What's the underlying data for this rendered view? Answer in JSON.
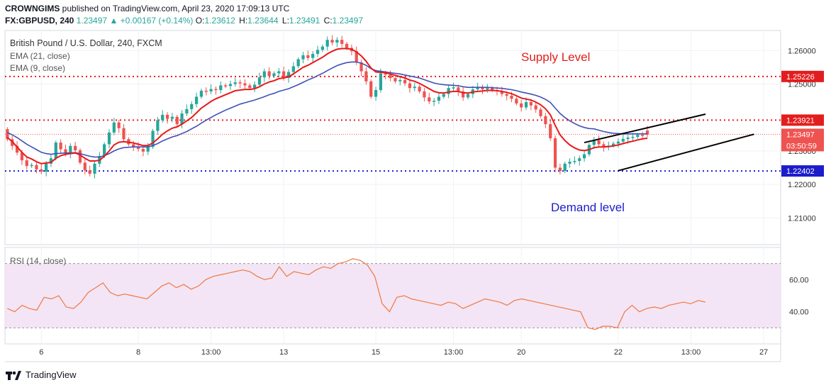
{
  "header": {
    "publisher": "CROWNGIMS",
    "published_text": "published on TradingView.com, April 23, 2020 17:09:13 UTC",
    "symbol": "FX:GBPUSD, 240",
    "last": "1.23497",
    "change": "+0.00167 (+0.14%)",
    "ohlc": [
      {
        "k": "O:",
        "v": "1.23612"
      },
      {
        "k": "H:",
        "v": "1.23644"
      },
      {
        "k": "L:",
        "v": "1.23491"
      },
      {
        "k": "C:",
        "v": "1.23497"
      }
    ]
  },
  "legend": {
    "title": "British Pound / U.S. Dollar, 240, FXCM",
    "ema21": "EMA (21, close)",
    "ema9": "EMA (9, close)",
    "rsi": "RSI (14, close)"
  },
  "annotations": {
    "supply": "Supply Level",
    "demand": "Demand level"
  },
  "footer": {
    "brand": "TradingView"
  },
  "colors": {
    "up": "#26a69a",
    "down": "#ef5350",
    "ema9": "#e81919",
    "ema21": "#3f51b5",
    "supply": "#e31d1d",
    "demand": "#1c1ccc",
    "rsi_line": "#f07840",
    "rsi_band": "#f3e5f5"
  },
  "chart_data": {
    "type": "candlestick",
    "y_axis": {
      "range": [
        1.202,
        1.266
      ],
      "ticks": [
        "1.26000",
        "1.25000",
        "1.23000",
        "1.22000",
        "1.21000"
      ],
      "tick_values": [
        1.26,
        1.25,
        1.23,
        1.22,
        1.21
      ]
    },
    "x_axis": {
      "ticks": [
        "6",
        "8",
        "13:00",
        "13",
        "15",
        "13:00",
        "20",
        "22",
        "13:00",
        "27"
      ],
      "tick_bars": [
        7,
        27,
        42,
        57,
        76,
        92,
        106,
        126,
        141,
        156
      ]
    },
    "levels": [
      {
        "label": "1.25226",
        "value": 1.25226,
        "color": "#e31d1d"
      },
      {
        "label": "1.23921",
        "value": 1.23921,
        "color": "#e31d1d"
      },
      {
        "label": "1.22402",
        "value": 1.22402,
        "color": "#1c1ccc"
      }
    ],
    "last_price": {
      "label": "1.23497",
      "value": 1.23497,
      "countdown": "03:50:59"
    },
    "candles_close": [
      1.2335,
      1.2315,
      1.2295,
      1.2272,
      1.2255,
      1.2258,
      1.2245,
      1.2238,
      1.2262,
      1.2278,
      1.2325,
      1.2305,
      1.2292,
      1.2315,
      1.2302,
      1.2265,
      1.2242,
      1.2232,
      1.2262,
      1.2285,
      1.232,
      1.2355,
      1.2385,
      1.2368,
      1.2335,
      1.232,
      1.2312,
      1.2306,
      1.2298,
      1.2312,
      1.236,
      1.2392,
      1.2408,
      1.2396,
      1.2402,
      1.238,
      1.2412,
      1.2425,
      1.244,
      1.2462,
      1.248,
      1.2478,
      1.2485,
      1.2482,
      1.2496,
      1.2494,
      1.25,
      1.2505,
      1.2502,
      1.2496,
      1.2488,
      1.2498,
      1.252,
      1.2538,
      1.2524,
      1.2532,
      1.2538,
      1.2518,
      1.2536,
      1.2553,
      1.2574,
      1.2586,
      1.2578,
      1.259,
      1.2602,
      1.2612,
      1.2632,
      1.2624,
      1.2632,
      1.262,
      1.2608,
      1.2598,
      1.2565,
      1.2538,
      1.2508,
      1.2462,
      1.2482,
      1.2532,
      1.2528,
      1.2518,
      1.2508,
      1.2512,
      1.2502,
      1.2488,
      1.2492,
      1.2478,
      1.246,
      1.2448,
      1.245,
      1.2462,
      1.247,
      1.2488,
      1.249,
      1.2478,
      1.246,
      1.247,
      1.2484,
      1.249,
      1.2484,
      1.2488,
      1.2482,
      1.2478,
      1.247,
      1.2465,
      1.2456,
      1.2442,
      1.243,
      1.2446,
      1.2436,
      1.2424,
      1.2404,
      1.238,
      1.2338,
      1.225,
      1.224,
      1.2262,
      1.2268,
      1.227,
      1.2278,
      1.229,
      1.2318,
      1.2332,
      1.232,
      1.2312,
      1.2316,
      1.2322,
      1.2328,
      1.2336,
      1.234,
      1.2342,
      1.2348,
      1.2346,
      1.2349
    ],
    "candles_open": [
      1.2365,
      1.2335,
      1.2315,
      1.2295,
      1.2272,
      1.2255,
      1.2258,
      1.2245,
      1.2238,
      1.2262,
      1.2278,
      1.2325,
      1.2305,
      1.2292,
      1.2315,
      1.2302,
      1.2265,
      1.2242,
      1.2232,
      1.2262,
      1.2285,
      1.232,
      1.2355,
      1.2385,
      1.2368,
      1.2335,
      1.232,
      1.2312,
      1.2306,
      1.2298,
      1.2312,
      1.236,
      1.2392,
      1.2408,
      1.2396,
      1.2402,
      1.238,
      1.2412,
      1.2425,
      1.244,
      1.2462,
      1.248,
      1.2478,
      1.2485,
      1.2482,
      1.2496,
      1.2494,
      1.25,
      1.2505,
      1.2502,
      1.2496,
      1.2488,
      1.2498,
      1.252,
      1.2538,
      1.2524,
      1.2532,
      1.2538,
      1.2518,
      1.2536,
      1.2553,
      1.2574,
      1.2586,
      1.2578,
      1.259,
      1.2602,
      1.2612,
      1.2632,
      1.2624,
      1.2632,
      1.262,
      1.2608,
      1.2598,
      1.2565,
      1.2538,
      1.2508,
      1.2462,
      1.2482,
      1.2532,
      1.2528,
      1.2518,
      1.2508,
      1.2512,
      1.2502,
      1.2488,
      1.2492,
      1.2478,
      1.246,
      1.2448,
      1.245,
      1.2462,
      1.247,
      1.2488,
      1.249,
      1.2478,
      1.246,
      1.247,
      1.2484,
      1.249,
      1.2484,
      1.2488,
      1.2482,
      1.2478,
      1.247,
      1.2465,
      1.2456,
      1.2442,
      1.243,
      1.2446,
      1.2436,
      1.2424,
      1.2404,
      1.238,
      1.2338,
      1.225,
      1.224,
      1.2262,
      1.2268,
      1.227,
      1.2278,
      1.229,
      1.2318,
      1.2332,
      1.232,
      1.2312,
      1.2316,
      1.2322,
      1.2328,
      1.2336,
      1.234,
      1.2342,
      1.2348,
      1.2361
    ],
    "ema9": [
      1.234,
      1.2328,
      1.2312,
      1.2296,
      1.2282,
      1.2276,
      1.2268,
      1.2262,
      1.2264,
      1.2266,
      1.2278,
      1.2286,
      1.229,
      1.2292,
      1.2294,
      1.2288,
      1.2278,
      1.227,
      1.227,
      1.2272,
      1.2284,
      1.23,
      1.2318,
      1.2326,
      1.2328,
      1.2326,
      1.2324,
      1.232,
      1.2316,
      1.2316,
      1.2324,
      1.2336,
      1.235,
      1.236,
      1.2368,
      1.2372,
      1.238,
      1.239,
      1.24,
      1.2414,
      1.2428,
      1.2438,
      1.2448,
      1.2456,
      1.2462,
      1.2468,
      1.2474,
      1.248,
      1.2482,
      1.2484,
      1.2484,
      1.2486,
      1.2492,
      1.25,
      1.2506,
      1.251,
      1.2516,
      1.2518,
      1.2522,
      1.253,
      1.254,
      1.255,
      1.2556,
      1.2564,
      1.2572,
      1.258,
      1.259,
      1.2598,
      1.2604,
      1.2606,
      1.2606,
      1.2604,
      1.2596,
      1.2584,
      1.2568,
      1.2548,
      1.2536,
      1.2535,
      1.2534,
      1.253,
      1.2526,
      1.2522,
      1.2518,
      1.2512,
      1.2508,
      1.2502,
      1.2494,
      1.2486,
      1.2478,
      1.2474,
      1.2473,
      1.2476,
      1.2478,
      1.2478,
      1.2474,
      1.2473,
      1.2476,
      1.2478,
      1.2479,
      1.2481,
      1.2481,
      1.248,
      1.2478,
      1.2475,
      1.2471,
      1.2465,
      1.2458,
      1.2455,
      1.2452,
      1.2446,
      1.2438,
      1.2426,
      1.2408,
      1.2376,
      1.2348,
      1.2331,
      1.2318,
      1.2309,
      1.2303,
      1.2301,
      1.2304,
      1.231,
      1.2312,
      1.2312,
      1.2313,
      1.2315,
      1.2318,
      1.2322,
      1.2326,
      1.2329,
      1.2333,
      1.2336,
      1.2338
    ],
    "ema21": [
      1.2355,
      1.2348,
      1.234,
      1.233,
      1.232,
      1.2312,
      1.2304,
      1.2296,
      1.2292,
      1.229,
      1.2292,
      1.2293,
      1.2294,
      1.2294,
      1.2295,
      1.2292,
      1.2288,
      1.2284,
      1.2282,
      1.2282,
      1.2286,
      1.2292,
      1.23,
      1.2306,
      1.231,
      1.2311,
      1.2312,
      1.2312,
      1.2312,
      1.2312,
      1.2316,
      1.2322,
      1.233,
      1.2336,
      1.2342,
      1.2346,
      1.2352,
      1.2358,
      1.2366,
      1.2374,
      1.2383,
      1.2392,
      1.24,
      1.2408,
      1.2415,
      1.2422,
      1.2428,
      1.2434,
      1.244,
      1.2444,
      1.2448,
      1.2452,
      1.2457,
      1.2462,
      1.2468,
      1.2472,
      1.2478,
      1.2482,
      1.2486,
      1.2492,
      1.2498,
      1.2505,
      1.2512,
      1.2518,
      1.2525,
      1.2532,
      1.254,
      1.2548,
      1.2555,
      1.256,
      1.2564,
      1.2566,
      1.2566,
      1.2562,
      1.2556,
      1.2546,
      1.254,
      1.2538,
      1.2536,
      1.2534,
      1.2532,
      1.253,
      1.2527,
      1.2524,
      1.2521,
      1.2518,
      1.2513,
      1.2508,
      1.2503,
      1.25,
      1.2498,
      1.2497,
      1.2496,
      1.2495,
      1.2492,
      1.249,
      1.249,
      1.249,
      1.249,
      1.249,
      1.2489,
      1.2488,
      1.2487,
      1.2485,
      1.2483,
      1.248,
      1.2476,
      1.2473,
      1.247,
      1.2466,
      1.2461,
      1.2454,
      1.2445,
      1.2428,
      1.2412,
      1.24,
      1.239,
      1.2382,
      1.2375,
      1.237,
      1.2367,
      1.2366,
      1.2362,
      1.2358,
      1.2355,
      1.2353,
      1.2352,
      1.2351,
      1.2351,
      1.2351,
      1.2351,
      1.2351,
      1.2351
    ],
    "rsi": {
      "range": [
        20,
        80
      ],
      "ticks": [
        "60.00",
        "40.00"
      ],
      "tick_values": [
        60,
        40
      ],
      "band": [
        70,
        30
      ],
      "values": [
        42,
        40,
        44,
        42,
        41,
        49,
        48,
        50,
        43,
        42,
        46,
        52,
        55,
        58,
        52,
        50,
        51,
        50,
        49,
        48,
        52,
        56,
        58,
        55,
        57,
        54,
        56,
        60,
        62,
        63,
        64,
        65,
        66,
        65,
        62,
        60,
        61,
        68,
        62,
        65,
        64,
        63,
        66,
        68,
        67,
        70,
        71,
        73,
        72,
        69,
        62,
        45,
        40,
        49,
        50,
        48,
        47,
        46,
        45,
        44,
        46,
        45,
        42,
        44,
        46,
        48,
        47,
        46,
        44,
        47,
        48,
        47,
        46,
        45,
        44,
        43,
        42,
        41,
        40,
        30,
        29,
        31,
        31,
        30,
        40,
        44,
        40,
        42,
        43,
        42,
        44,
        45,
        46,
        45,
        47,
        46
      ]
    },
    "trendlines": [
      {
        "from_bar": 119,
        "from_price": 1.2325,
        "to_bar": 144,
        "to_price": 1.241
      },
      {
        "from_bar": 126,
        "from_price": 1.2241,
        "to_bar": 154,
        "to_price": 1.235
      }
    ]
  }
}
